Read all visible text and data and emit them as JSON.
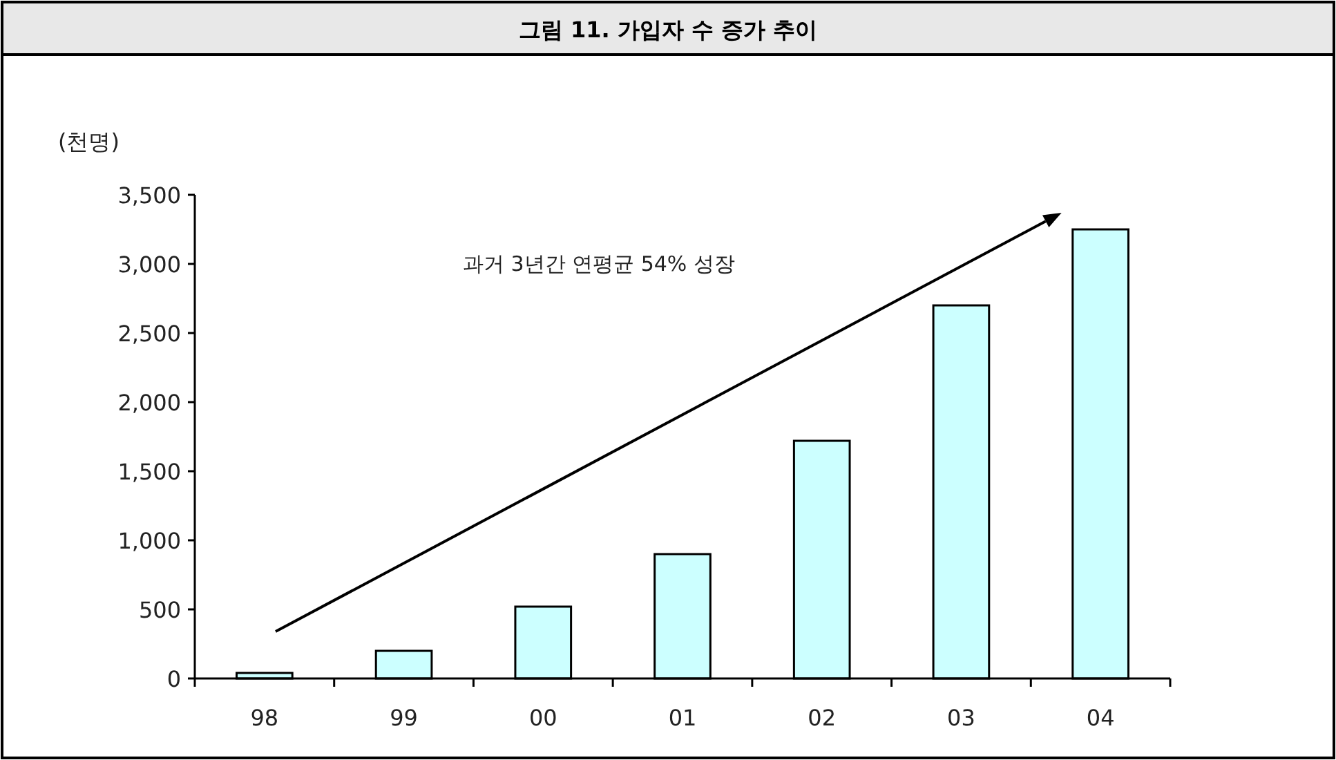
{
  "chart_data": {
    "type": "bar",
    "title": "그림 11. 가입자 수 증가 추이",
    "ylabel": "(천명)",
    "categories": [
      "98",
      "99",
      "00",
      "01",
      "02",
      "03",
      "04"
    ],
    "values": [
      40,
      200,
      520,
      900,
      1720,
      2700,
      3250
    ],
    "color": "#ccffff",
    "ylim": [
      0,
      3500
    ],
    "yticks": [
      {
        "value": 0,
        "label": "0"
      },
      {
        "value": 500,
        "label": "500"
      },
      {
        "value": 1000,
        "label": "1,000"
      },
      {
        "value": 1500,
        "label": "1,500"
      },
      {
        "value": 2000,
        "label": "2,000"
      },
      {
        "value": 2500,
        "label": "2,500"
      },
      {
        "value": 3000,
        "label": "3,000"
      },
      {
        "value": 3500,
        "label": "3,500"
      }
    ],
    "annotations": [
      "과거 3년간 연평균 54% 성장"
    ],
    "grid": false
  }
}
